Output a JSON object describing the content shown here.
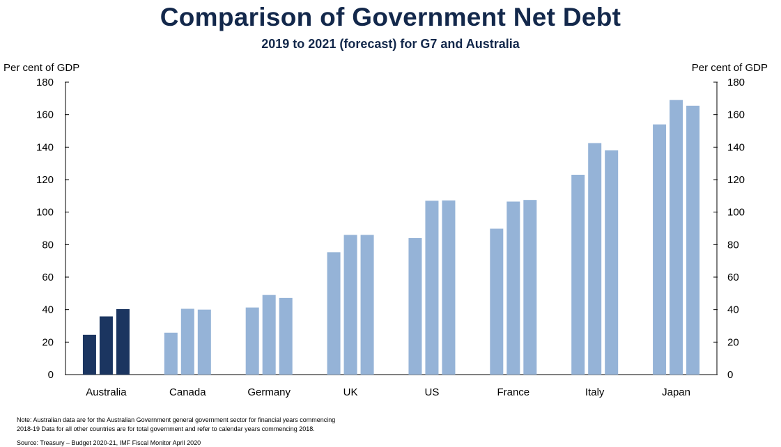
{
  "title": "Comparison of Government Net Debt",
  "subtitle": "2019 to 2021 (forecast) for G7 and Australia",
  "note_line1": "Note: Australian data are for the Australian Government general government sector for financial years commencing",
  "note_line2": "2018-19 Data for all other countries are for total government and refer to calendar years commencing 2018.",
  "source": "Source: Treasury – Budget 2020-21, IMF Fiscal Monitor April 2020",
  "colors": {
    "highlight": "#1b3560",
    "default": "#95b3d7",
    "title": "#13284b"
  },
  "chart_data": {
    "type": "bar",
    "ylabel_left": "Per cent of GDP",
    "ylabel_right": "Per cent of GDP",
    "ylim": [
      0,
      180
    ],
    "yticks": [
      0,
      20,
      40,
      60,
      80,
      100,
      120,
      140,
      160,
      180
    ],
    "categories": [
      "Australia",
      "Canada",
      "Germany",
      "UK",
      "US",
      "France",
      "Italy",
      "Japan"
    ],
    "highlight_category": "Australia",
    "series": [
      {
        "values": [
          24.5,
          25.8,
          41.3,
          75.3,
          84.0,
          89.8,
          123.0,
          154.0
        ]
      },
      {
        "values": [
          35.8,
          40.5,
          49.0,
          86.0,
          107.0,
          106.5,
          142.5,
          169.0
        ]
      },
      {
        "values": [
          40.3,
          40.0,
          47.2,
          86.0,
          107.2,
          107.5,
          138.0,
          165.5
        ]
      }
    ]
  }
}
